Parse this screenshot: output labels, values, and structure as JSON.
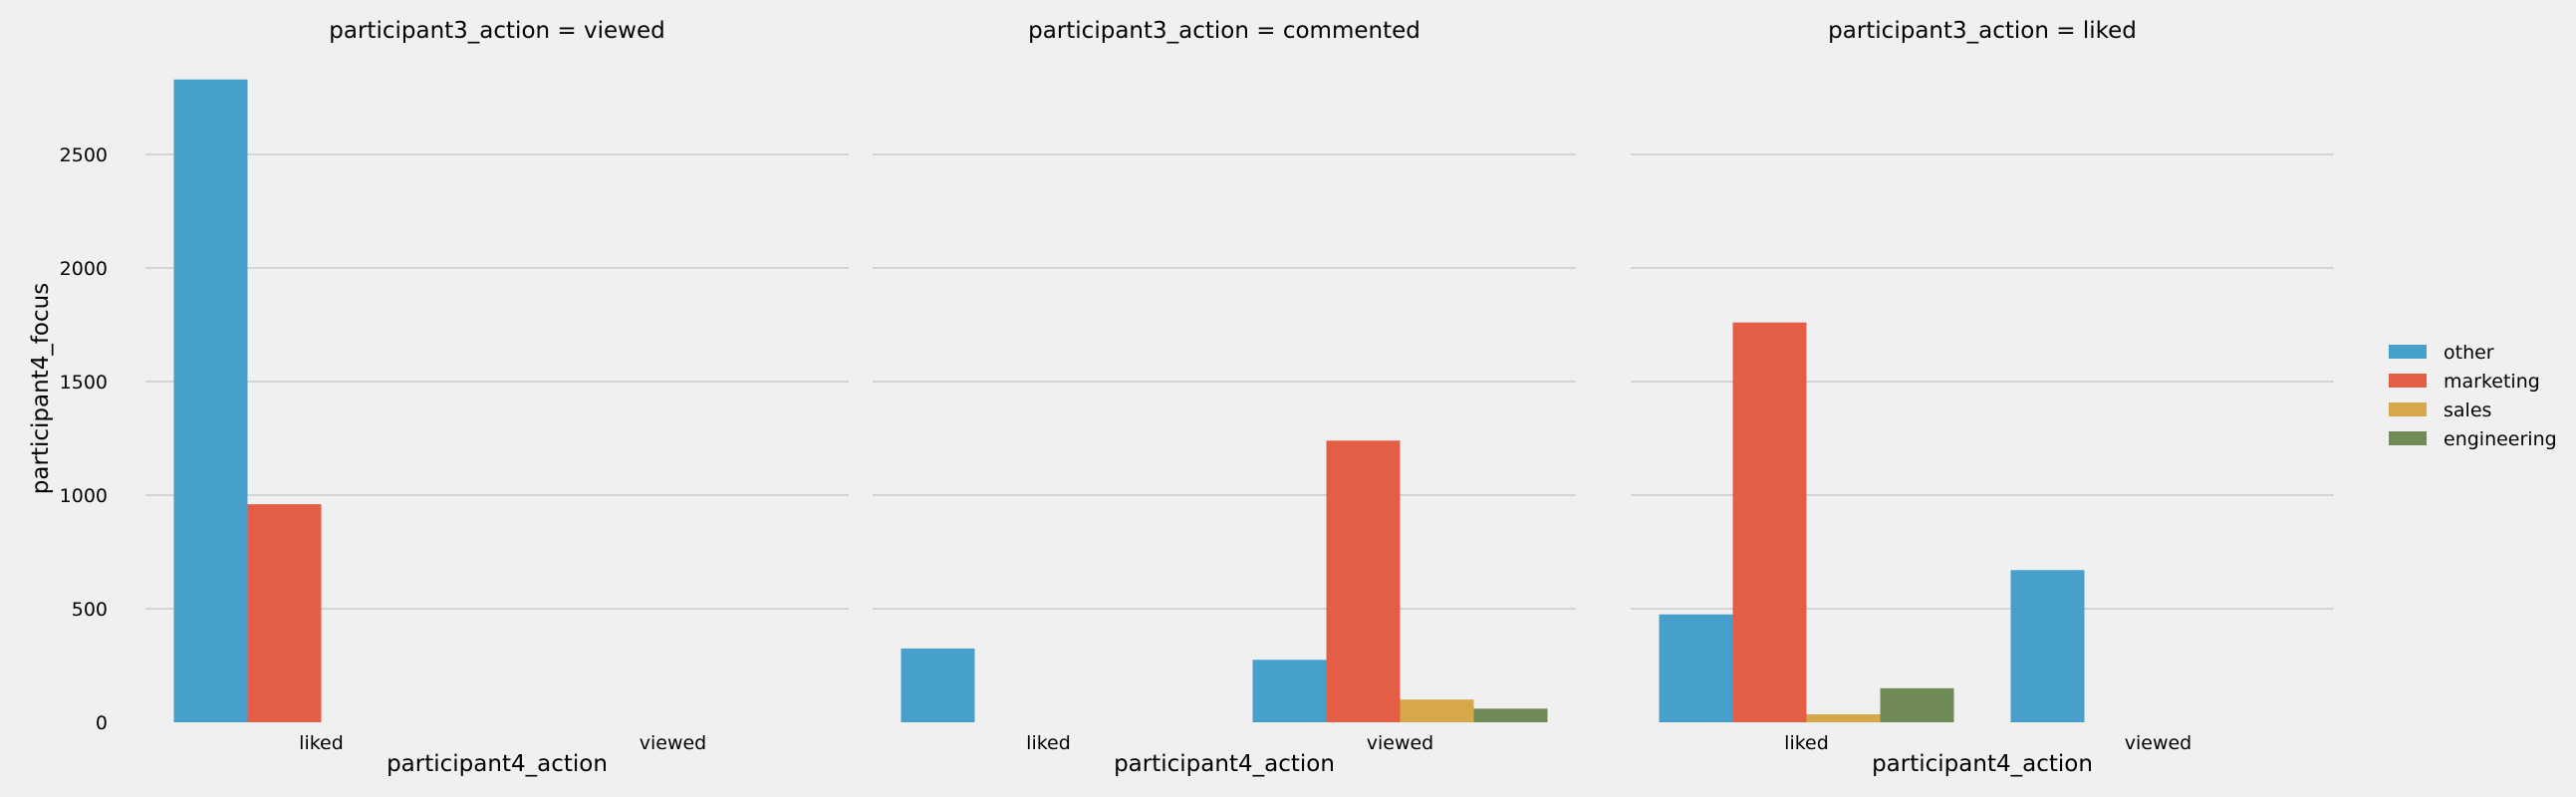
{
  "chart_data": {
    "type": "bar",
    "ylabel": "participant4_focus",
    "xlabel": "participant4_action",
    "ylim": [
      0,
      2900
    ],
    "yticks": [
      0,
      500,
      1000,
      1500,
      2000,
      2500
    ],
    "categories": [
      "liked",
      "viewed"
    ],
    "grid": "horizontal",
    "legend_placement": "right",
    "series": [
      {
        "name": "other",
        "color": "#47a0cc"
      },
      {
        "name": "marketing",
        "color": "#e45e46"
      },
      {
        "name": "sales",
        "color": "#d6a84a"
      },
      {
        "name": "engineering",
        "color": "#718b57"
      }
    ],
    "panels": [
      {
        "title": "participant3_action = viewed",
        "values": {
          "liked": [
            2830,
            960,
            null,
            null
          ],
          "viewed": [
            null,
            null,
            null,
            null
          ]
        }
      },
      {
        "title": "participant3_action = commented",
        "values": {
          "liked": [
            325,
            null,
            null,
            null
          ],
          "viewed": [
            275,
            1240,
            100,
            60
          ]
        }
      },
      {
        "title": "participant3_action = liked",
        "values": {
          "liked": [
            475,
            1760,
            35,
            150
          ],
          "viewed": [
            670,
            null,
            null,
            null
          ]
        }
      }
    ]
  }
}
